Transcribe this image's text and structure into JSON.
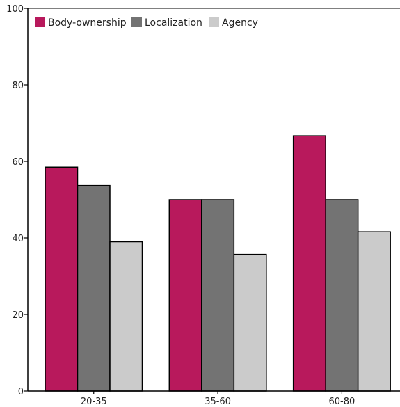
{
  "chart_data": {
    "type": "bar",
    "categories": [
      "20-35",
      "35-60",
      "60-80"
    ],
    "series": [
      {
        "name": "Body-ownership",
        "values": [
          58.5,
          50,
          66.7
        ],
        "color": "#b8195c"
      },
      {
        "name": "Localization",
        "values": [
          53.7,
          50,
          50
        ],
        "color": "#737373"
      },
      {
        "name": "Agency",
        "values": [
          39,
          35.7,
          41.6
        ],
        "color": "#cbcbcb"
      }
    ],
    "ylim": [
      0,
      100
    ],
    "yticks": [
      "0",
      "20",
      "40",
      "60",
      "80",
      "100"
    ],
    "title": "",
    "xlabel": "",
    "ylabel": "",
    "grid": false,
    "legend_position": "top-left"
  }
}
